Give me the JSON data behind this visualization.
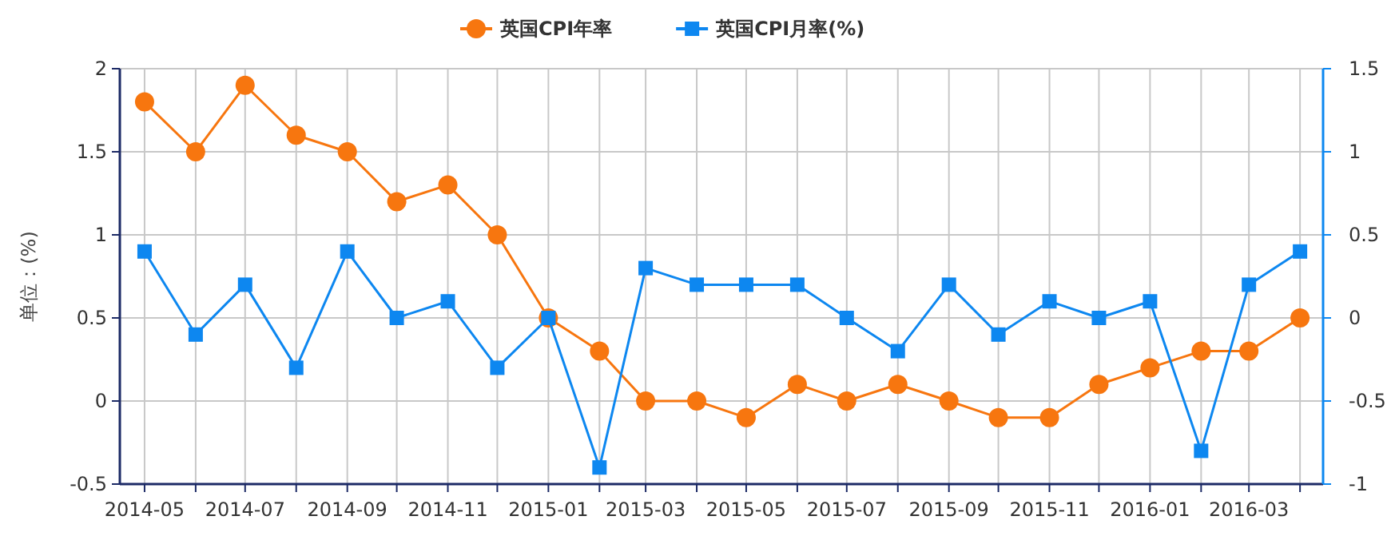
{
  "chart_data": {
    "type": "line",
    "ylabel": "单位：(%)",
    "legend": "top",
    "grid": true,
    "line_style": "solid",
    "x": [
      "2014-05",
      "2014-06",
      "2014-07",
      "2014-08",
      "2014-09",
      "2014-10",
      "2014-11",
      "2014-12",
      "2015-01",
      "2015-02",
      "2015-03",
      "2015-04",
      "2015-05",
      "2015-06",
      "2015-07",
      "2015-08",
      "2015-09",
      "2015-10",
      "2015-11",
      "2015-12",
      "2016-01",
      "2016-02",
      "2016-03",
      "2016-04"
    ],
    "xlim": [
      "2014-04-16",
      "2016-04-15"
    ],
    "xticks": [
      {
        "value": "2014-05",
        "label": "2014-05"
      },
      {
        "value": "2014-06",
        "label": null
      },
      {
        "value": "2014-07",
        "label": "2014-07"
      },
      {
        "value": "2014-08",
        "label": null
      },
      {
        "value": "2014-09",
        "label": "2014-09"
      },
      {
        "value": "2014-10",
        "label": null
      },
      {
        "value": "2014-11",
        "label": "2014-11"
      },
      {
        "value": "2014-12",
        "label": null
      },
      {
        "value": "2015-01",
        "label": "2015-01"
      },
      {
        "value": "2015-02",
        "label": null
      },
      {
        "value": "2015-03",
        "label": "2015-03"
      },
      {
        "value": "2015-04",
        "label": null
      },
      {
        "value": "2015-05",
        "label": "2015-05"
      },
      {
        "value": "2015-06",
        "label": null
      },
      {
        "value": "2015-07",
        "label": "2015-07"
      },
      {
        "value": "2015-08",
        "label": null
      },
      {
        "value": "2015-09",
        "label": "2015-09"
      },
      {
        "value": "2015-10",
        "label": null
      },
      {
        "value": "2015-11",
        "label": "2015-11"
      },
      {
        "value": "2015-12",
        "label": null
      },
      {
        "value": "2016-01",
        "label": "2016-01"
      },
      {
        "value": "2016-02",
        "label": null
      },
      {
        "value": "2016-03",
        "label": "2016-03"
      },
      {
        "value": "2016-04",
        "label": null
      }
    ],
    "ylim": [
      -0.5,
      2
    ],
    "yticks": [
      -0.5,
      0,
      0.5,
      1,
      1.5,
      2
    ],
    "y2lim": [
      -1,
      1.5
    ],
    "y2ticks": [
      -1,
      -0.5,
      0,
      0.5,
      1,
      1.5
    ],
    "series": [
      {
        "name": "英国CPI年率",
        "color": "#f7760f",
        "marker": "circle",
        "values": [
          1.8,
          1.5,
          1.9,
          1.6,
          1.5,
          1.2,
          1.3,
          1.0,
          0.5,
          0.3,
          0.0,
          0.0,
          -0.1,
          0.1,
          0.0,
          0.1,
          0.0,
          -0.1,
          -0.1,
          0.1,
          0.2,
          0.3,
          0.3,
          0.5
        ]
      },
      {
        "name": "英国CPI月率(%)",
        "color": "#0d87f0",
        "marker": "square",
        "axis": "y2",
        "values": [
          0.4,
          -0.1,
          0.2,
          -0.3,
          0.4,
          0.0,
          0.1,
          -0.3,
          0.0,
          -0.9,
          0.3,
          0.2,
          0.2,
          0.2,
          0.0,
          -0.2,
          0.2,
          -0.1,
          0.1,
          0.0,
          0.1,
          -0.8,
          0.2,
          0.4
        ]
      }
    ]
  }
}
